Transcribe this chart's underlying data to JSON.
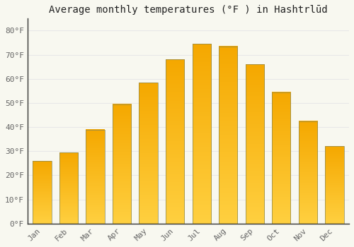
{
  "title": "Average monthly temperatures (°F ) in Hashtrlūd",
  "months": [
    "Jan",
    "Feb",
    "Mar",
    "Apr",
    "May",
    "Jun",
    "Jul",
    "Aug",
    "Sep",
    "Oct",
    "Nov",
    "Dec"
  ],
  "values": [
    26,
    29.5,
    39,
    49.5,
    58.5,
    68,
    74.5,
    73.5,
    66,
    54.5,
    42.5,
    32
  ],
  "bar_color_top": "#F5A800",
  "bar_color_bottom": "#FFD040",
  "bar_edge_color": "#888855",
  "background_color": "#F8F8F0",
  "grid_color": "#E8E8E8",
  "ylabel_ticks": [
    "0°F",
    "10°F",
    "20°F",
    "30°F",
    "40°F",
    "50°F",
    "60°F",
    "70°F",
    "80°F"
  ],
  "ytick_values": [
    0,
    10,
    20,
    30,
    40,
    50,
    60,
    70,
    80
  ],
  "ylim": [
    0,
    85
  ],
  "title_fontsize": 10,
  "tick_fontsize": 8,
  "tick_color": "#666666",
  "spine_color": "#333333"
}
